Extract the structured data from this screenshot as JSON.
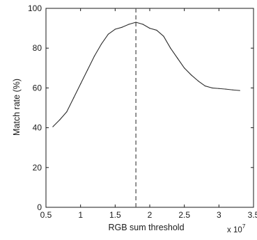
{
  "chart_data": {
    "type": "line",
    "title": "",
    "xlabel": "RGB sum threshold",
    "ylabel": "Match rate (%)",
    "x_multiplier_label": "x 10",
    "x_multiplier_exponent": "7",
    "xlim": [
      0.5,
      3.5
    ],
    "ylim": [
      0,
      100
    ],
    "xticks": [
      0.5,
      1,
      1.5,
      2,
      2.5,
      3,
      3.5
    ],
    "xtick_labels": [
      "0.5",
      "1",
      "1.5",
      "2",
      "2.5",
      "3",
      "3.5"
    ],
    "yticks": [
      0,
      20,
      40,
      60,
      80,
      100
    ],
    "ytick_labels": [
      "0",
      "20",
      "40",
      "60",
      "80",
      "100"
    ],
    "grid": false,
    "legend": "none",
    "colors": {
      "line": "#2b2b2b",
      "marker_line": "#555555",
      "axes": "#1a1a1a"
    },
    "marker_line": {
      "x": 1.8,
      "style": "dashed"
    },
    "series": [
      {
        "x": [
          0.6,
          0.7,
          0.8,
          0.9,
          1.0,
          1.1,
          1.2,
          1.3,
          1.4,
          1.5,
          1.6,
          1.7,
          1.8,
          1.9,
          2.0,
          2.1,
          2.2,
          2.3,
          2.4,
          2.5,
          2.6,
          2.7,
          2.8,
          2.9,
          3.0,
          3.1,
          3.2,
          3.3
        ],
        "y": [
          40.5,
          44,
          48,
          55,
          62,
          69,
          76,
          82,
          87,
          89.5,
          90.5,
          92,
          93,
          92,
          90,
          89,
          86,
          80,
          75,
          70,
          66.5,
          63.5,
          61,
          60,
          59.7,
          59.4,
          59,
          58.7
        ]
      }
    ]
  }
}
